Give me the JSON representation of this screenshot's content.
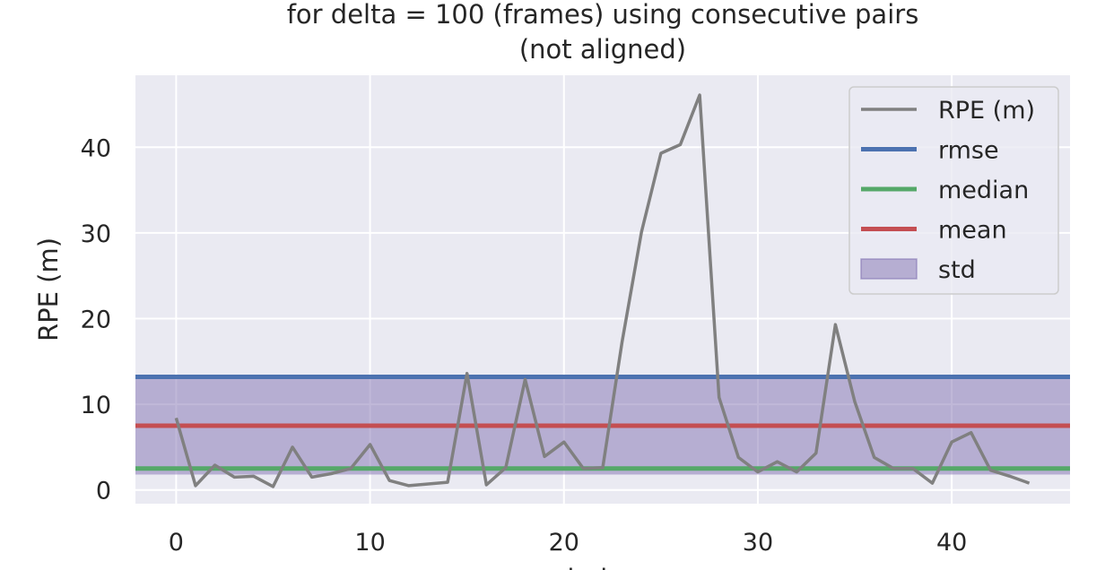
{
  "chart_data": {
    "type": "line",
    "title_line1": "for delta = 100 (frames) using consecutive pairs",
    "title_line2": "(not aligned)",
    "xlabel": "index",
    "ylabel": "RPE (m)",
    "xlim": [
      -2.1,
      46.1
    ],
    "ylim": [
      -1.6,
      48.4
    ],
    "xticks": [
      0,
      10,
      20,
      30,
      40
    ],
    "yticks": [
      0,
      10,
      20,
      30,
      40
    ],
    "grid": true,
    "legend_position": "top-right",
    "series": [
      {
        "name": "RPE (m)",
        "color": "#808080",
        "x": [
          0,
          1,
          2,
          3,
          4,
          5,
          6,
          7,
          8,
          9,
          10,
          11,
          12,
          13,
          14,
          15,
          16,
          17,
          18,
          19,
          20,
          21,
          22,
          23,
          24,
          25,
          26,
          27,
          28,
          29,
          30,
          31,
          32,
          33,
          34,
          35,
          36,
          37,
          38,
          39,
          40,
          41,
          42,
          43,
          44
        ],
        "y": [
          8.4,
          0.5,
          2.9,
          1.5,
          1.6,
          0.4,
          5.0,
          1.5,
          1.9,
          2.5,
          5.3,
          1.1,
          0.5,
          0.7,
          0.9,
          13.6,
          0.6,
          2.6,
          12.9,
          3.9,
          5.6,
          2.5,
          2.6,
          17.3,
          30.1,
          39.3,
          40.3,
          46.1,
          10.8,
          3.8,
          2.1,
          3.3,
          2.1,
          4.3,
          19.3,
          10.3,
          3.8,
          2.5,
          2.5,
          0.8,
          5.6,
          6.7,
          2.3,
          1.6,
          0.8
        ]
      }
    ],
    "stats": {
      "rmse": 13.2,
      "median": 2.5,
      "mean": 7.5,
      "std_lower": 1.8,
      "std_upper": 13.0
    },
    "legend": [
      {
        "label": "RPE (m)",
        "kind": "line",
        "color": "#808080"
      },
      {
        "label": "rmse",
        "kind": "line",
        "color": "#4c72b0"
      },
      {
        "label": "median",
        "kind": "line",
        "color": "#55a868"
      },
      {
        "label": "mean",
        "kind": "line",
        "color": "#c44e52"
      },
      {
        "label": "std",
        "kind": "patch",
        "color": "#8172b2"
      }
    ],
    "colors": {
      "rmse": "#4c72b0",
      "median": "#55a868",
      "mean": "#c44e52",
      "std": "#8172b2",
      "axes_bg": "#eaeaf2"
    }
  }
}
